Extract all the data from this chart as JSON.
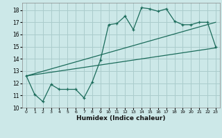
{
  "background_color": "#cce8e8",
  "grid_color": "#aacccc",
  "line_color": "#1a6b5a",
  "xlabel": "Humidex (Indice chaleur)",
  "xlim": [
    -0.5,
    23.5
  ],
  "ylim": [
    10,
    18.6
  ],
  "yticks": [
    10,
    11,
    12,
    13,
    14,
    15,
    16,
    17,
    18
  ],
  "xticks": [
    0,
    1,
    2,
    3,
    4,
    5,
    6,
    7,
    8,
    9,
    10,
    11,
    12,
    13,
    14,
    15,
    16,
    17,
    18,
    19,
    20,
    21,
    22,
    23
  ],
  "line1_x": [
    0,
    1,
    2,
    3,
    4,
    5,
    6,
    7,
    8,
    9,
    10,
    11,
    12,
    13,
    14,
    15,
    16,
    17,
    18,
    19,
    20,
    21,
    22,
    23
  ],
  "line1_y": [
    12.6,
    11.1,
    10.5,
    11.9,
    11.5,
    11.5,
    11.5,
    10.8,
    12.1,
    13.9,
    16.8,
    16.9,
    17.5,
    16.4,
    18.2,
    18.1,
    17.9,
    18.1,
    17.1,
    16.8,
    16.8,
    17.0,
    17.0,
    15.0
  ],
  "line2_x": [
    0,
    23
  ],
  "line2_y": [
    12.6,
    17.0
  ],
  "line3_x": [
    0,
    23
  ],
  "line3_y": [
    12.6,
    14.9
  ],
  "title": ""
}
